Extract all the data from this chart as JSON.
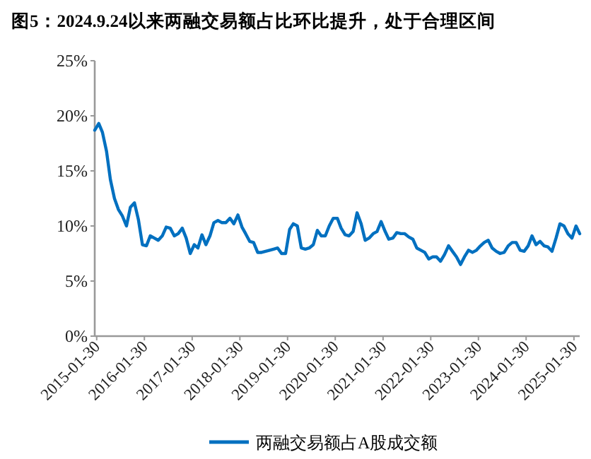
{
  "chart_data": {
    "type": "line",
    "title": "图5：2024.9.24以来两融交易额占比环比提升，处于合理区间",
    "x": [
      "2015-01",
      "2015-02",
      "2015-03",
      "2015-04",
      "2015-05",
      "2015-06",
      "2015-07",
      "2015-08",
      "2015-09",
      "2015-10",
      "2015-11",
      "2015-12",
      "2016-01",
      "2016-02",
      "2016-03",
      "2016-04",
      "2016-05",
      "2016-06",
      "2016-07",
      "2016-08",
      "2016-09",
      "2016-10",
      "2016-11",
      "2016-12",
      "2017-01",
      "2017-02",
      "2017-03",
      "2017-04",
      "2017-05",
      "2017-06",
      "2017-07",
      "2017-08",
      "2017-09",
      "2017-10",
      "2017-11",
      "2017-12",
      "2018-01",
      "2018-02",
      "2018-03",
      "2018-04",
      "2018-05",
      "2018-06",
      "2018-07",
      "2018-08",
      "2018-09",
      "2018-10",
      "2018-11",
      "2018-12",
      "2019-01",
      "2019-02",
      "2019-03",
      "2019-04",
      "2019-05",
      "2019-06",
      "2019-07",
      "2019-08",
      "2019-09",
      "2019-10",
      "2019-11",
      "2019-12",
      "2020-01",
      "2020-02",
      "2020-03",
      "2020-04",
      "2020-05",
      "2020-06",
      "2020-07",
      "2020-08",
      "2020-09",
      "2020-10",
      "2020-11",
      "2020-12",
      "2021-01",
      "2021-02",
      "2021-03",
      "2021-04",
      "2021-05",
      "2021-06",
      "2021-07",
      "2021-08",
      "2021-09",
      "2021-10",
      "2021-11",
      "2021-12",
      "2022-01",
      "2022-02",
      "2022-03",
      "2022-04",
      "2022-05",
      "2022-06",
      "2022-07",
      "2022-08",
      "2022-09",
      "2022-10",
      "2022-11",
      "2022-12",
      "2023-01",
      "2023-02",
      "2023-03",
      "2023-04",
      "2023-05",
      "2023-06",
      "2023-07",
      "2023-08",
      "2023-09",
      "2023-10",
      "2023-11",
      "2023-12",
      "2024-01",
      "2024-02",
      "2024-03",
      "2024-04",
      "2024-05",
      "2024-06",
      "2024-07",
      "2024-08",
      "2024-09",
      "2024-10",
      "2024-11",
      "2024-12",
      "2025-01",
      "2025-02",
      "2025-03"
    ],
    "series": [
      {
        "name": "两融交易额占A股成交额",
        "color": "#0070c0",
        "values": [
          18.7,
          19.3,
          18.5,
          16.8,
          14.2,
          12.5,
          11.5,
          10.9,
          10.0,
          11.7,
          12.1,
          10.6,
          8.3,
          8.2,
          9.1,
          8.9,
          8.7,
          9.1,
          9.9,
          9.8,
          9.1,
          9.3,
          9.8,
          8.9,
          7.5,
          8.3,
          8.0,
          9.2,
          8.3,
          9.1,
          10.3,
          10.5,
          10.3,
          10.3,
          10.7,
          10.2,
          11.0,
          9.9,
          9.3,
          8.6,
          8.5,
          7.6,
          7.6,
          7.7,
          7.8,
          7.9,
          8.0,
          7.5,
          7.5,
          9.7,
          10.2,
          10.0,
          8.0,
          7.9,
          8.0,
          8.3,
          9.6,
          9.1,
          9.1,
          10.0,
          10.7,
          10.7,
          9.8,
          9.2,
          9.1,
          9.5,
          11.2,
          10.2,
          8.7,
          8.9,
          9.3,
          9.5,
          10.4,
          9.5,
          8.8,
          8.9,
          9.4,
          9.3,
          9.3,
          9.0,
          8.8,
          8.0,
          7.8,
          7.6,
          7.0,
          7.2,
          7.2,
          6.8,
          7.4,
          8.2,
          7.7,
          7.2,
          6.5,
          7.2,
          7.8,
          7.6,
          7.8,
          8.2,
          8.5,
          8.7,
          8.0,
          7.7,
          7.5,
          7.6,
          8.2,
          8.5,
          8.5,
          7.8,
          7.7,
          8.2,
          9.1,
          8.3,
          8.6,
          8.2,
          8.1,
          7.7,
          8.9,
          10.2,
          10.0,
          9.3,
          8.9,
          10.0,
          9.3
        ]
      }
    ],
    "xlim": [
      "2015-01",
      "2025-03"
    ],
    "xticks": [
      "2015-01-30",
      "2016-01-30",
      "2017-01-30",
      "2018-01-30",
      "2019-01-30",
      "2020-01-30",
      "2021-01-30",
      "2022-01-30",
      "2023-01-30",
      "2024-01-30",
      "2025-01-30"
    ],
    "ylim": [
      0,
      25
    ],
    "yticks": [
      {
        "value": 0,
        "label": "0%"
      },
      {
        "value": 5,
        "label": "5%"
      },
      {
        "value": 10,
        "label": "10%"
      },
      {
        "value": 15,
        "label": "15%"
      },
      {
        "value": 20,
        "label": "20%"
      },
      {
        "value": 25,
        "label": "25%"
      }
    ],
    "grid": false,
    "legend": "bottom",
    "marker": "none",
    "line_style": "solid"
  }
}
